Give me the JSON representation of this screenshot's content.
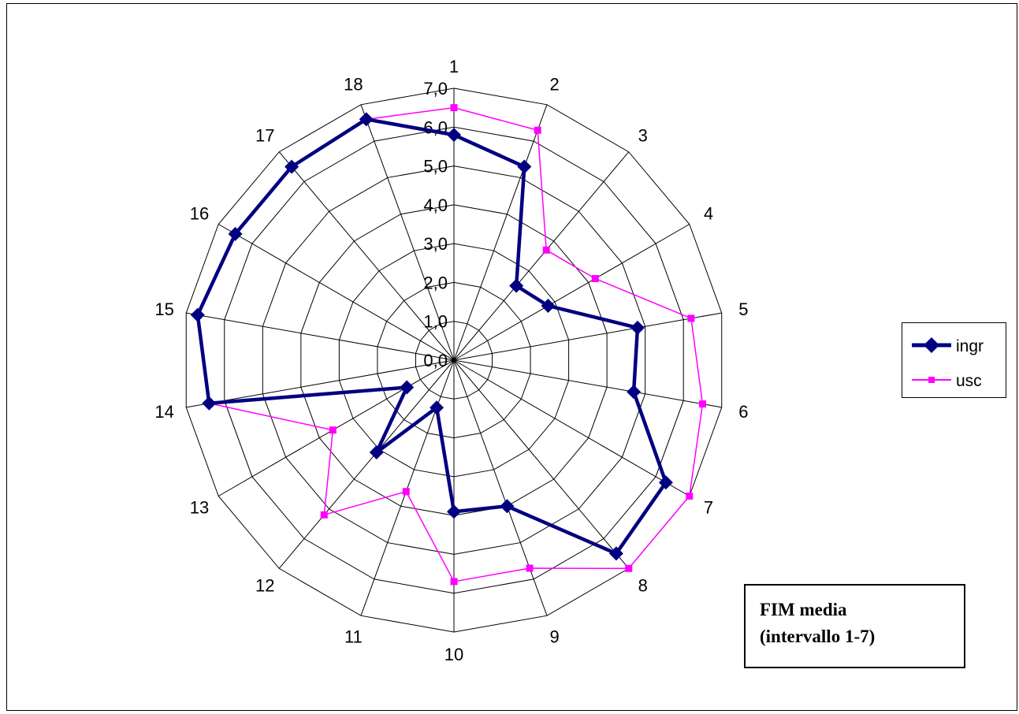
{
  "chart_data": {
    "type": "radar",
    "categories": [
      "1",
      "2",
      "3",
      "4",
      "5",
      "6",
      "7",
      "8",
      "9",
      "10",
      "11",
      "12",
      "13",
      "14",
      "15",
      "16",
      "17",
      "18"
    ],
    "tick_labels": [
      "0,0",
      "1,0",
      "2,0",
      "3,0",
      "4,0",
      "5,0",
      "6,0",
      "7,0"
    ],
    "rlim": [
      0,
      7
    ],
    "series": [
      {
        "name": "ingr",
        "color": "#000080",
        "marker": "diamond",
        "values": [
          5.8,
          5.3,
          2.5,
          2.8,
          4.8,
          4.7,
          6.3,
          6.5,
          4.0,
          3.9,
          1.3,
          3.1,
          1.4,
          6.4,
          6.7,
          6.5,
          6.5,
          6.6
        ]
      },
      {
        "name": "usc",
        "color": "#ff00ff",
        "marker": "square",
        "values": [
          6.5,
          6.3,
          3.7,
          4.2,
          6.2,
          6.5,
          7.0,
          7.0,
          5.7,
          5.7,
          3.6,
          5.2,
          3.6,
          6.4,
          6.7,
          6.5,
          6.5,
          6.6
        ]
      }
    ],
    "grid": true,
    "legend_position": "right"
  },
  "annotation": {
    "line1": "FIM media",
    "line2": "(intervallo 1-7)"
  }
}
